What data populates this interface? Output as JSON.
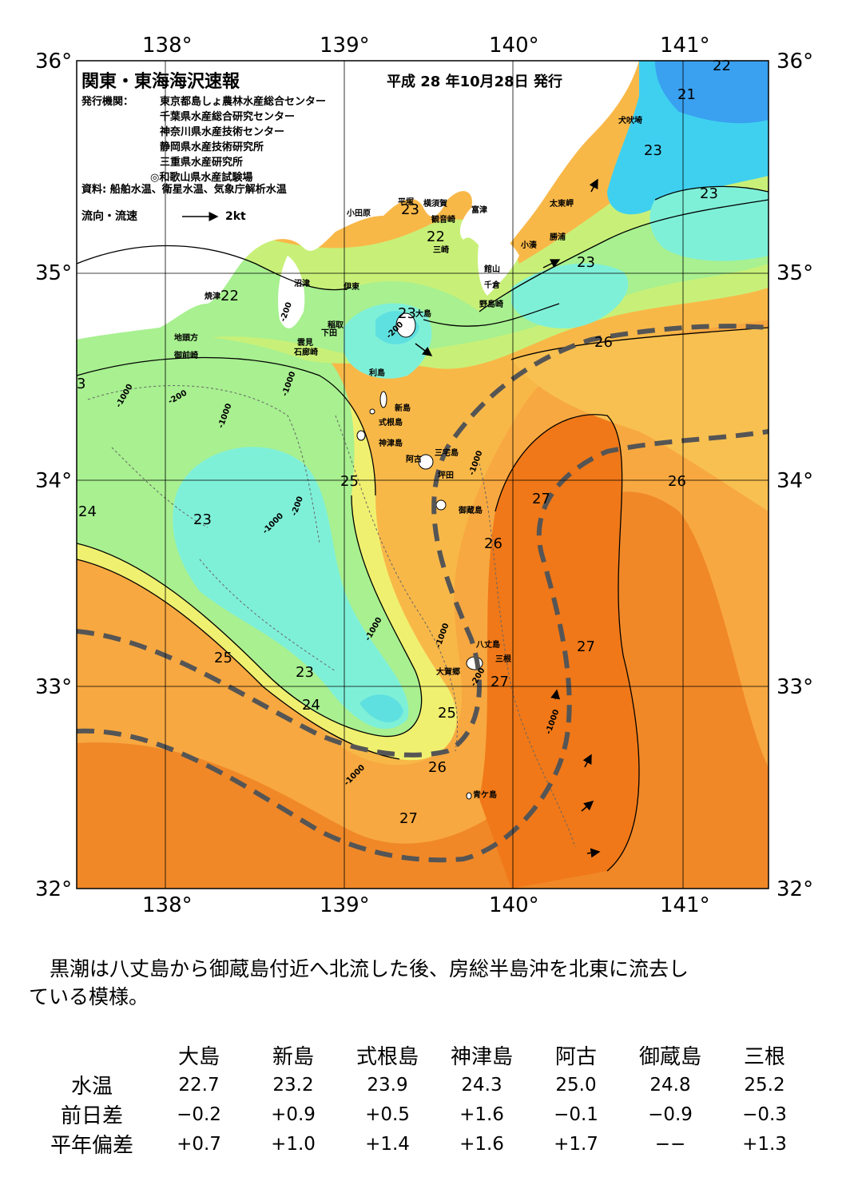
{
  "map": {
    "title": "関東・東海海沢速報",
    "date": "平成 28 年10月28日 発行",
    "publisher_label": "発行機関：",
    "publishers": [
      "東京都島しょ農林水産総合センター",
      "千葉県水産総合研究センター",
      "神奈川県水産技術センター",
      "静岡県水産技術研究所",
      "三重県水産研究所",
      "◎和歌山県水産試験場"
    ],
    "source": "資料: 船舶水温、衛星水温、気象庁解析水温",
    "legend_label": "流向・流速",
    "legend_scale": "2kt",
    "lon_labels": [
      "138°",
      "139°",
      "140°",
      "141°"
    ],
    "lat_labels": [
      "36°",
      "35°",
      "34°",
      "33°",
      "32°"
    ],
    "isotherm_labels": [
      "22",
      "21",
      "23",
      "23",
      "23",
      "22",
      "23",
      "22",
      "23",
      "26",
      "3",
      "23",
      "25",
      "24",
      "26",
      "27",
      "26",
      "25",
      "23",
      "24",
      "27",
      "25",
      "26",
      "27",
      "27"
    ],
    "depth_labels": [
      "-1000",
      "-200",
      "-1000",
      "-200",
      "-1000",
      "-200",
      "-1000",
      "-200",
      "-1000",
      "-200",
      "-1000",
      "-1000",
      "-1000",
      "-1000"
    ],
    "place_names": [
      "犬吠埼",
      "太東岬",
      "勝浦",
      "小湊",
      "館山",
      "千倉",
      "野島崎",
      "富津",
      "横須賀",
      "観音崎",
      "平塚",
      "三崎",
      "小田原",
      "沼津",
      "伊東",
      "稲取",
      "下田",
      "雲見",
      "石廊崎",
      "焼津",
      "地頭方",
      "御前崎",
      "大島",
      "利島",
      "新島",
      "式根島",
      "神津島",
      "三宅島",
      "坪田",
      "阿古",
      "御蔵島",
      "八丈島",
      "三根",
      "大賀郷",
      "青ケ島"
    ]
  },
  "description": [
    "黒潮は八丈島から御蔵島付近へ北流した後、房総半島沖を北東に流去し",
    "ている模様。"
  ],
  "table": {
    "columns": [
      "大島",
      "新島",
      "式根島",
      "神津島",
      "阿古",
      "御蔵島",
      "三根"
    ],
    "rows": [
      {
        "label": "水温",
        "values": [
          "22.7",
          "23.2",
          "23.9",
          "24.3",
          "25.0",
          "24.8",
          "25.2"
        ]
      },
      {
        "label": "前日差",
        "values": [
          "−0.2",
          "+0.9",
          "+0.5",
          "+1.6",
          "−0.1",
          "−0.9",
          "−0.3"
        ]
      },
      {
        "label": "平年偏差",
        "values": [
          "+0.7",
          "+1.0",
          "+1.4",
          "+1.6",
          "+1.7",
          "−−",
          "+1.3"
        ]
      }
    ]
  },
  "colors": {
    "c21": "#3aa0f0",
    "c22": "#3fd0f0",
    "c23": "#7ff0d8",
    "c23b": "#a8f090",
    "c24": "#c8f078",
    "c245": "#f0f070",
    "c25": "#f8d860",
    "c26": "#f8b848",
    "c27": "#f08828",
    "c28": "#f07818",
    "land": "#ffffff"
  }
}
